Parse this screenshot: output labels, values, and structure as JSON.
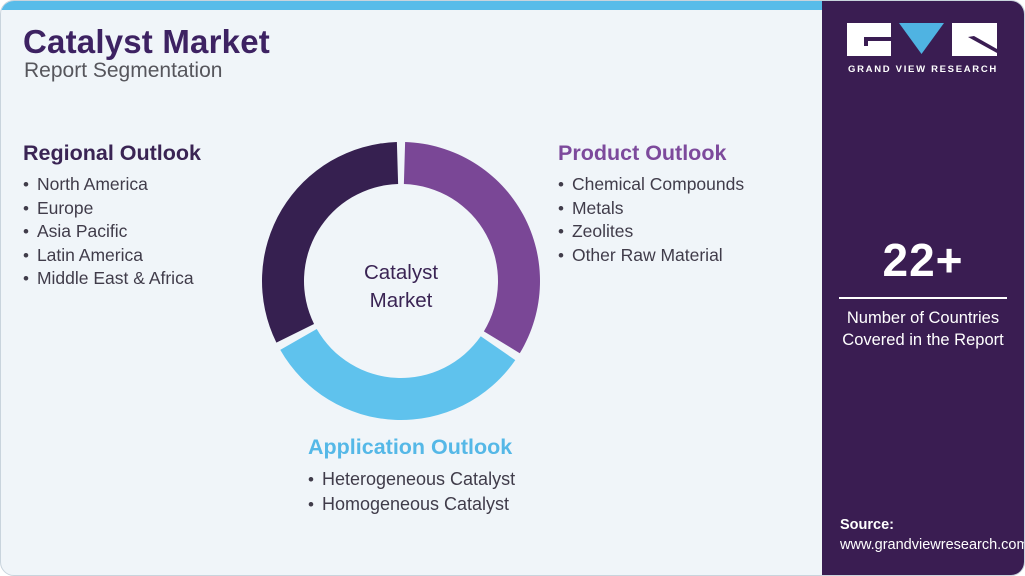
{
  "header": {
    "title": "Catalyst Market",
    "subtitle": "Report Segmentation"
  },
  "sections": {
    "regional": {
      "heading": "Regional Outlook",
      "items": [
        "North America",
        "Europe",
        "Asia Pacific",
        "Latin America",
        "Middle East & Africa"
      ]
    },
    "product": {
      "heading": "Product Outlook",
      "items": [
        "Chemical Compounds",
        "Metals",
        "Zeolites",
        "Other Raw Material"
      ]
    },
    "application": {
      "heading": "Application Outlook",
      "items": [
        "Heterogeneous Catalyst",
        "Homogeneous Catalyst"
      ]
    }
  },
  "chart_data": {
    "type": "donut",
    "title": "Catalyst Market Report Segmentation",
    "center_label_lines": [
      "Catalyst",
      "Market"
    ],
    "outer_radius": 139,
    "inner_radius": 97,
    "legend_position": "around-chart",
    "segments": [
      {
        "name": "Product Outlook",
        "slug": "product-outlook",
        "color": "#7a4796",
        "start_deg": 1.7,
        "end_deg": 121.3,
        "percent": 34
      },
      {
        "name": "Application Outlook",
        "slug": "application-outlook",
        "color": "#5fc2ed",
        "start_deg": 124.7,
        "end_deg": 240.3,
        "percent": 33
      },
      {
        "name": "Regional Outlook",
        "slug": "regional-outlook",
        "color": "#362050",
        "start_deg": 243.7,
        "end_deg": 358.3,
        "percent": 33
      }
    ]
  },
  "sidebar": {
    "logo": {
      "brand": "GRAND VIEW RESEARCH"
    },
    "stat": {
      "value": "22+",
      "caption": "Number of Countries Covered in the Report"
    },
    "source_label": "Source:",
    "source_url": "www.grandviewresearch.com"
  },
  "colors": {
    "accent_top_bar": "#58bce9",
    "card_background": "#f0f5f9",
    "sidebar_background": "#3a1d52",
    "title": "#3d2262",
    "regional_heading": "#3a2454",
    "product_heading": "#7d4a9c",
    "application_heading": "#55b8e7",
    "body_text": "#403c4a",
    "logo_v_blue": "#4fb3e2"
  }
}
